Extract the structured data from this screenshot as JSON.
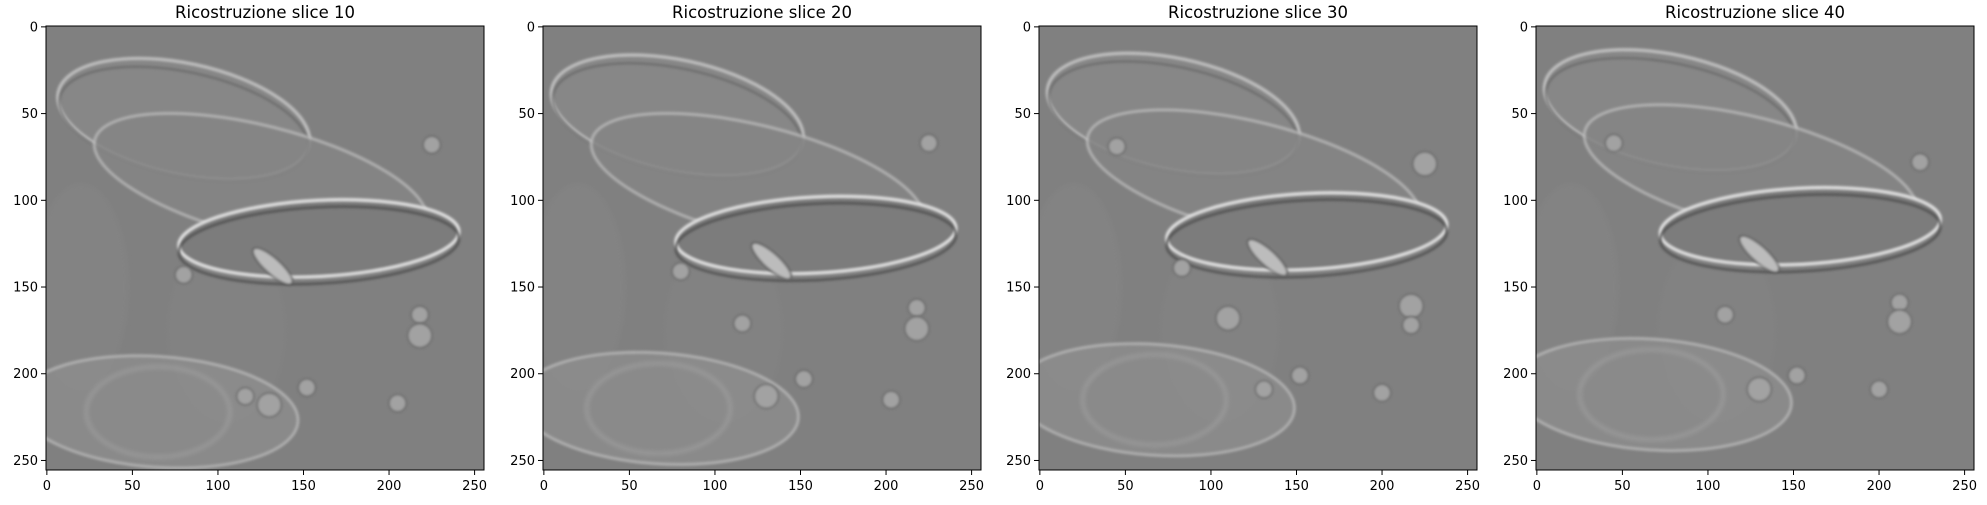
{
  "figure": {
    "background": "#ffffff",
    "image_base_color": "#808080"
  },
  "chart_data": [
    {
      "type": "heatmap",
      "title": "Ricostruzione slice 10",
      "xticks": [
        0,
        50,
        100,
        150,
        200,
        250
      ],
      "yticks": [
        0,
        50,
        100,
        150,
        200,
        250
      ],
      "xlim": [
        0,
        255
      ],
      "ylim": [
        255,
        0
      ],
      "colormap": "gray",
      "features": {
        "top_ellipse": [
          110,
          48
        ],
        "mid_ellipse": [
          140,
          95
        ],
        "center_ring": [
          165,
          122
        ],
        "bottom_ellipse": [
          90,
          220
        ],
        "diag_blob": [
          132,
          138
        ],
        "dots": [
          [
            80,
            143
          ],
          [
            116,
            213
          ],
          [
            130,
            218
          ],
          [
            152,
            208
          ],
          [
            218,
            166
          ],
          [
            218,
            178
          ],
          [
            205,
            217
          ],
          [
            225,
            68
          ]
        ]
      }
    },
    {
      "type": "heatmap",
      "title": "Ricostruzione slice 20",
      "xticks": [
        0,
        50,
        100,
        150,
        200,
        250
      ],
      "yticks": [
        0,
        50,
        100,
        150,
        200,
        250
      ],
      "xlim": [
        0,
        255
      ],
      "ylim": [
        255,
        0
      ],
      "colormap": "gray",
      "features": {
        "top_ellipse": [
          108,
          46
        ],
        "mid_ellipse": [
          140,
          95
        ],
        "center_ring": [
          165,
          120
        ],
        "bottom_ellipse": [
          92,
          218
        ],
        "diag_blob": [
          133,
          135
        ],
        "dots": [
          [
            80,
            141
          ],
          [
            116,
            171
          ],
          [
            130,
            213
          ],
          [
            152,
            203
          ],
          [
            218,
            162
          ],
          [
            218,
            174
          ],
          [
            203,
            215
          ],
          [
            225,
            67
          ]
        ]
      }
    },
    {
      "type": "heatmap",
      "title": "Ricostruzione slice 30",
      "xticks": [
        0,
        50,
        100,
        150,
        200,
        250
      ],
      "yticks": [
        0,
        50,
        100,
        150,
        200,
        250
      ],
      "xlim": [
        0,
        255
      ],
      "ylim": [
        255,
        0
      ],
      "colormap": "gray",
      "features": {
        "top_ellipse": [
          108,
          45
        ],
        "mid_ellipse": [
          140,
          93
        ],
        "center_ring": [
          162,
          118
        ],
        "bottom_ellipse": [
          92,
          213
        ],
        "diag_blob": [
          133,
          133
        ],
        "dots": [
          [
            45,
            69
          ],
          [
            83,
            139
          ],
          [
            110,
            168
          ],
          [
            131,
            209
          ],
          [
            152,
            201
          ],
          [
            217,
            161
          ],
          [
            217,
            172
          ],
          [
            200,
            211
          ],
          [
            225,
            79
          ]
        ]
      }
    },
    {
      "type": "heatmap",
      "title": "Ricostruzione slice 40",
      "xticks": [
        0,
        50,
        100,
        150,
        200,
        250
      ],
      "yticks": [
        0,
        50,
        100,
        150,
        200,
        250
      ],
      "xlim": [
        0,
        255
      ],
      "ylim": [
        255,
        0
      ],
      "colormap": "gray",
      "features": {
        "top_ellipse": [
          108,
          43
        ],
        "mid_ellipse": [
          140,
          90
        ],
        "center_ring": [
          160,
          115
        ],
        "bottom_ellipse": [
          92,
          210
        ],
        "diag_blob": [
          130,
          131
        ],
        "dots": [
          [
            45,
            67
          ],
          [
            110,
            166
          ],
          [
            130,
            209
          ],
          [
            152,
            201
          ],
          [
            212,
            159
          ],
          [
            212,
            170
          ],
          [
            200,
            209
          ],
          [
            224,
            78
          ]
        ]
      }
    }
  ]
}
